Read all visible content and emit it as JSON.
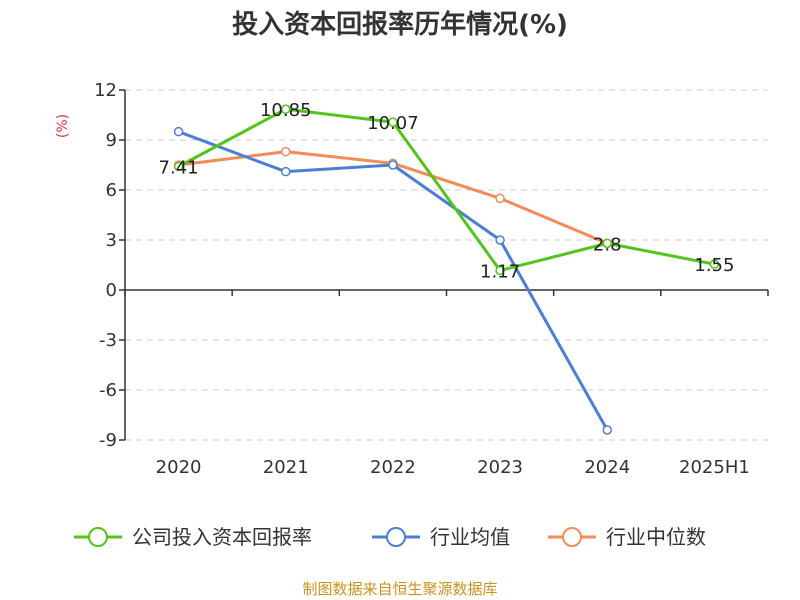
{
  "colors": {
    "company": "#52c41a",
    "industry_avg": "#4a7fd4",
    "industry_median": "#f48b58"
  },
  "chart_data": {
    "type": "line",
    "title": "投入资本回报率历年情况(%)",
    "xlabel": "",
    "ylabel": "(%)",
    "categories": [
      "2020",
      "2021",
      "2022",
      "2023",
      "2024",
      "2025H1"
    ],
    "yticks": [
      "12",
      "9",
      "6",
      "3",
      "0",
      "-3",
      "-6",
      "-9"
    ],
    "ylim": [
      -9,
      12
    ],
    "grid": true,
    "legend_position": "bottom",
    "series": [
      {
        "name": "公司投入资本回报率",
        "color_key": "company",
        "values": [
          7.41,
          10.85,
          10.07,
          1.17,
          2.8,
          1.55
        ],
        "labels": [
          "7.41",
          "10.85",
          "10.07",
          "1.17",
          "2.8",
          "1.55"
        ]
      },
      {
        "name": "行业均值",
        "color_key": "industry_avg",
        "values": [
          9.5,
          7.1,
          7.5,
          3.0,
          -8.4,
          null
        ]
      },
      {
        "name": "行业中位数",
        "color_key": "industry_median",
        "values": [
          7.5,
          8.3,
          7.6,
          5.5,
          2.8,
          null
        ]
      }
    ],
    "source": "制图数据来自恒生聚源数据库"
  }
}
